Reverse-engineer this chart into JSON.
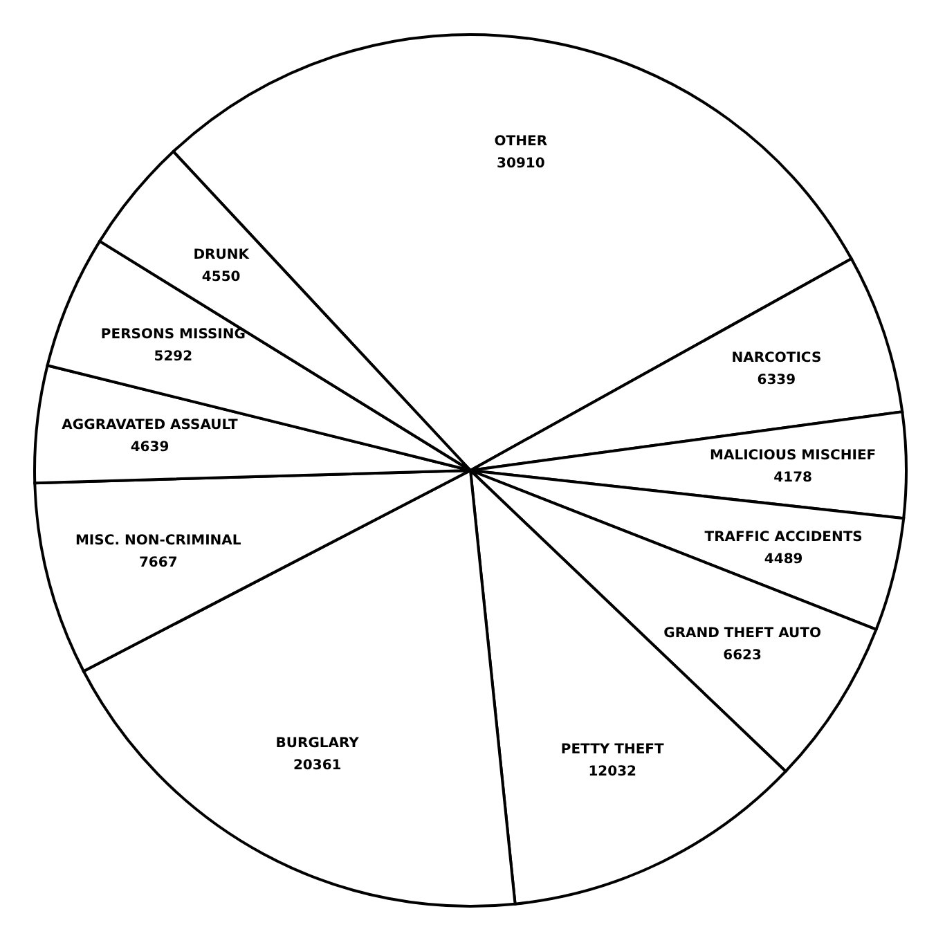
{
  "chart_data": {
    "type": "pie",
    "categories": [
      "OTHER",
      "NARCOTICS",
      "MALICIOUS MISCHIEF",
      "TRAFFIC ACCIDENTS",
      "GRAND THEFT AUTO",
      "PETTY THEFT",
      "BURGLARY",
      "MISC. NON-CRIMINAL",
      "AGGRAVATED ASSAULT",
      "PERSONS MISSING",
      "DRUNK"
    ],
    "values": [
      30910,
      6339,
      4178,
      4489,
      6623,
      12032,
      20361,
      7667,
      4639,
      5292,
      4550
    ],
    "colors": [
      "#ffffff",
      "#ffffff",
      "#ffffff",
      "#ffffff",
      "#ffffff",
      "#ffffff",
      "#ffffff",
      "#ffffff",
      "#ffffff",
      "#ffffff",
      "#ffffff"
    ],
    "data_labels": true,
    "legend": false
  }
}
